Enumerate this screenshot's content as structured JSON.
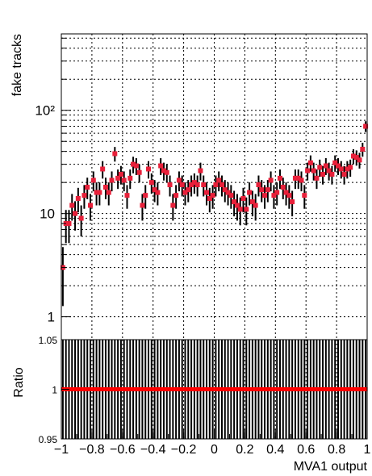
{
  "chart_data": [
    {
      "type": "scatter",
      "panel": "main",
      "ylabel": "fake tracks",
      "xlim": [
        -1,
        1
      ],
      "ylim": [
        0.6,
        550
      ],
      "yscale": "log",
      "grid": true,
      "ytick_labels": [
        "1",
        "10",
        "10²"
      ],
      "ytick_values": [
        1,
        10,
        100
      ],
      "marker_color": "#e8203a",
      "errorbar_color": "#000000",
      "series": [
        {
          "x": [
            -0.99,
            -0.97,
            -0.95,
            -0.93,
            -0.91,
            -0.89,
            -0.87,
            -0.85,
            -0.83,
            -0.81,
            -0.79,
            -0.77,
            -0.75,
            -0.73,
            -0.71,
            -0.69,
            -0.67,
            -0.65,
            -0.63,
            -0.61,
            -0.59,
            -0.57,
            -0.55,
            -0.53,
            -0.51,
            -0.49,
            -0.47,
            -0.45,
            -0.43,
            -0.41,
            -0.39,
            -0.37,
            -0.35,
            -0.33,
            -0.31,
            -0.29,
            -0.27,
            -0.25,
            -0.23,
            -0.21,
            -0.19,
            -0.17,
            -0.15,
            -0.13,
            -0.11,
            -0.09,
            -0.07,
            -0.05,
            -0.03,
            -0.01,
            0.01,
            0.03,
            0.05,
            0.07,
            0.09,
            0.11,
            0.13,
            0.15,
            0.17,
            0.19,
            0.21,
            0.23,
            0.25,
            0.27,
            0.29,
            0.31,
            0.33,
            0.35,
            0.37,
            0.39,
            0.41,
            0.43,
            0.45,
            0.47,
            0.49,
            0.51,
            0.53,
            0.55,
            0.57,
            0.59,
            0.61,
            0.63,
            0.65,
            0.67,
            0.69,
            0.71,
            0.73,
            0.75,
            0.77,
            0.79,
            0.81,
            0.83,
            0.85,
            0.87,
            0.89,
            0.91,
            0.93,
            0.95,
            0.97,
            0.99
          ],
          "y": [
            3,
            8,
            8,
            12,
            10,
            14,
            9,
            15,
            18,
            12,
            21,
            16,
            16,
            27,
            18,
            16,
            21,
            38,
            22,
            24,
            21,
            15,
            22,
            30,
            29,
            25,
            12,
            15,
            27,
            20,
            17,
            16,
            29,
            26,
            25,
            19,
            12,
            15,
            21,
            19,
            16,
            17,
            19,
            20,
            19,
            26,
            19,
            16,
            14,
            15,
            19,
            21,
            19,
            17,
            16,
            15,
            13,
            12,
            11,
            14,
            11,
            16,
            13,
            12,
            19,
            17,
            15,
            17,
            21,
            15,
            16,
            22,
            18,
            16,
            15,
            13,
            22,
            22,
            21,
            15,
            26,
            31,
            26,
            22,
            28,
            24,
            29,
            26,
            24,
            31,
            29,
            27,
            24,
            27,
            28,
            36,
            35,
            33,
            42,
            70
          ]
        }
      ]
    },
    {
      "type": "scatter",
      "panel": "ratio",
      "ylabel": "Ratio",
      "xlabel": "MVA1 output",
      "xlim": [
        -1,
        1
      ],
      "ylim": [
        0.95,
        1.05
      ],
      "grid": true,
      "xtick_labels": [
        "−1",
        "−0.8",
        "−0.6",
        "−0.4",
        "−0.2",
        "0",
        "0.2",
        "0.4",
        "0.6",
        "0.8",
        "1"
      ],
      "xtick_values": [
        -1,
        -0.8,
        -0.6,
        -0.4,
        -0.2,
        0,
        0.2,
        0.4,
        0.6,
        0.8,
        1
      ],
      "ytick_labels": [
        "0.95",
        "1",
        "1.05"
      ],
      "ytick_values": [
        0.95,
        1,
        1.05
      ],
      "marker_color": "#ff0000",
      "errorbar_color": "#000000",
      "series": [
        {
          "bins": 100,
          "value": 1,
          "error_extends_beyond_range": true
        }
      ]
    }
  ]
}
